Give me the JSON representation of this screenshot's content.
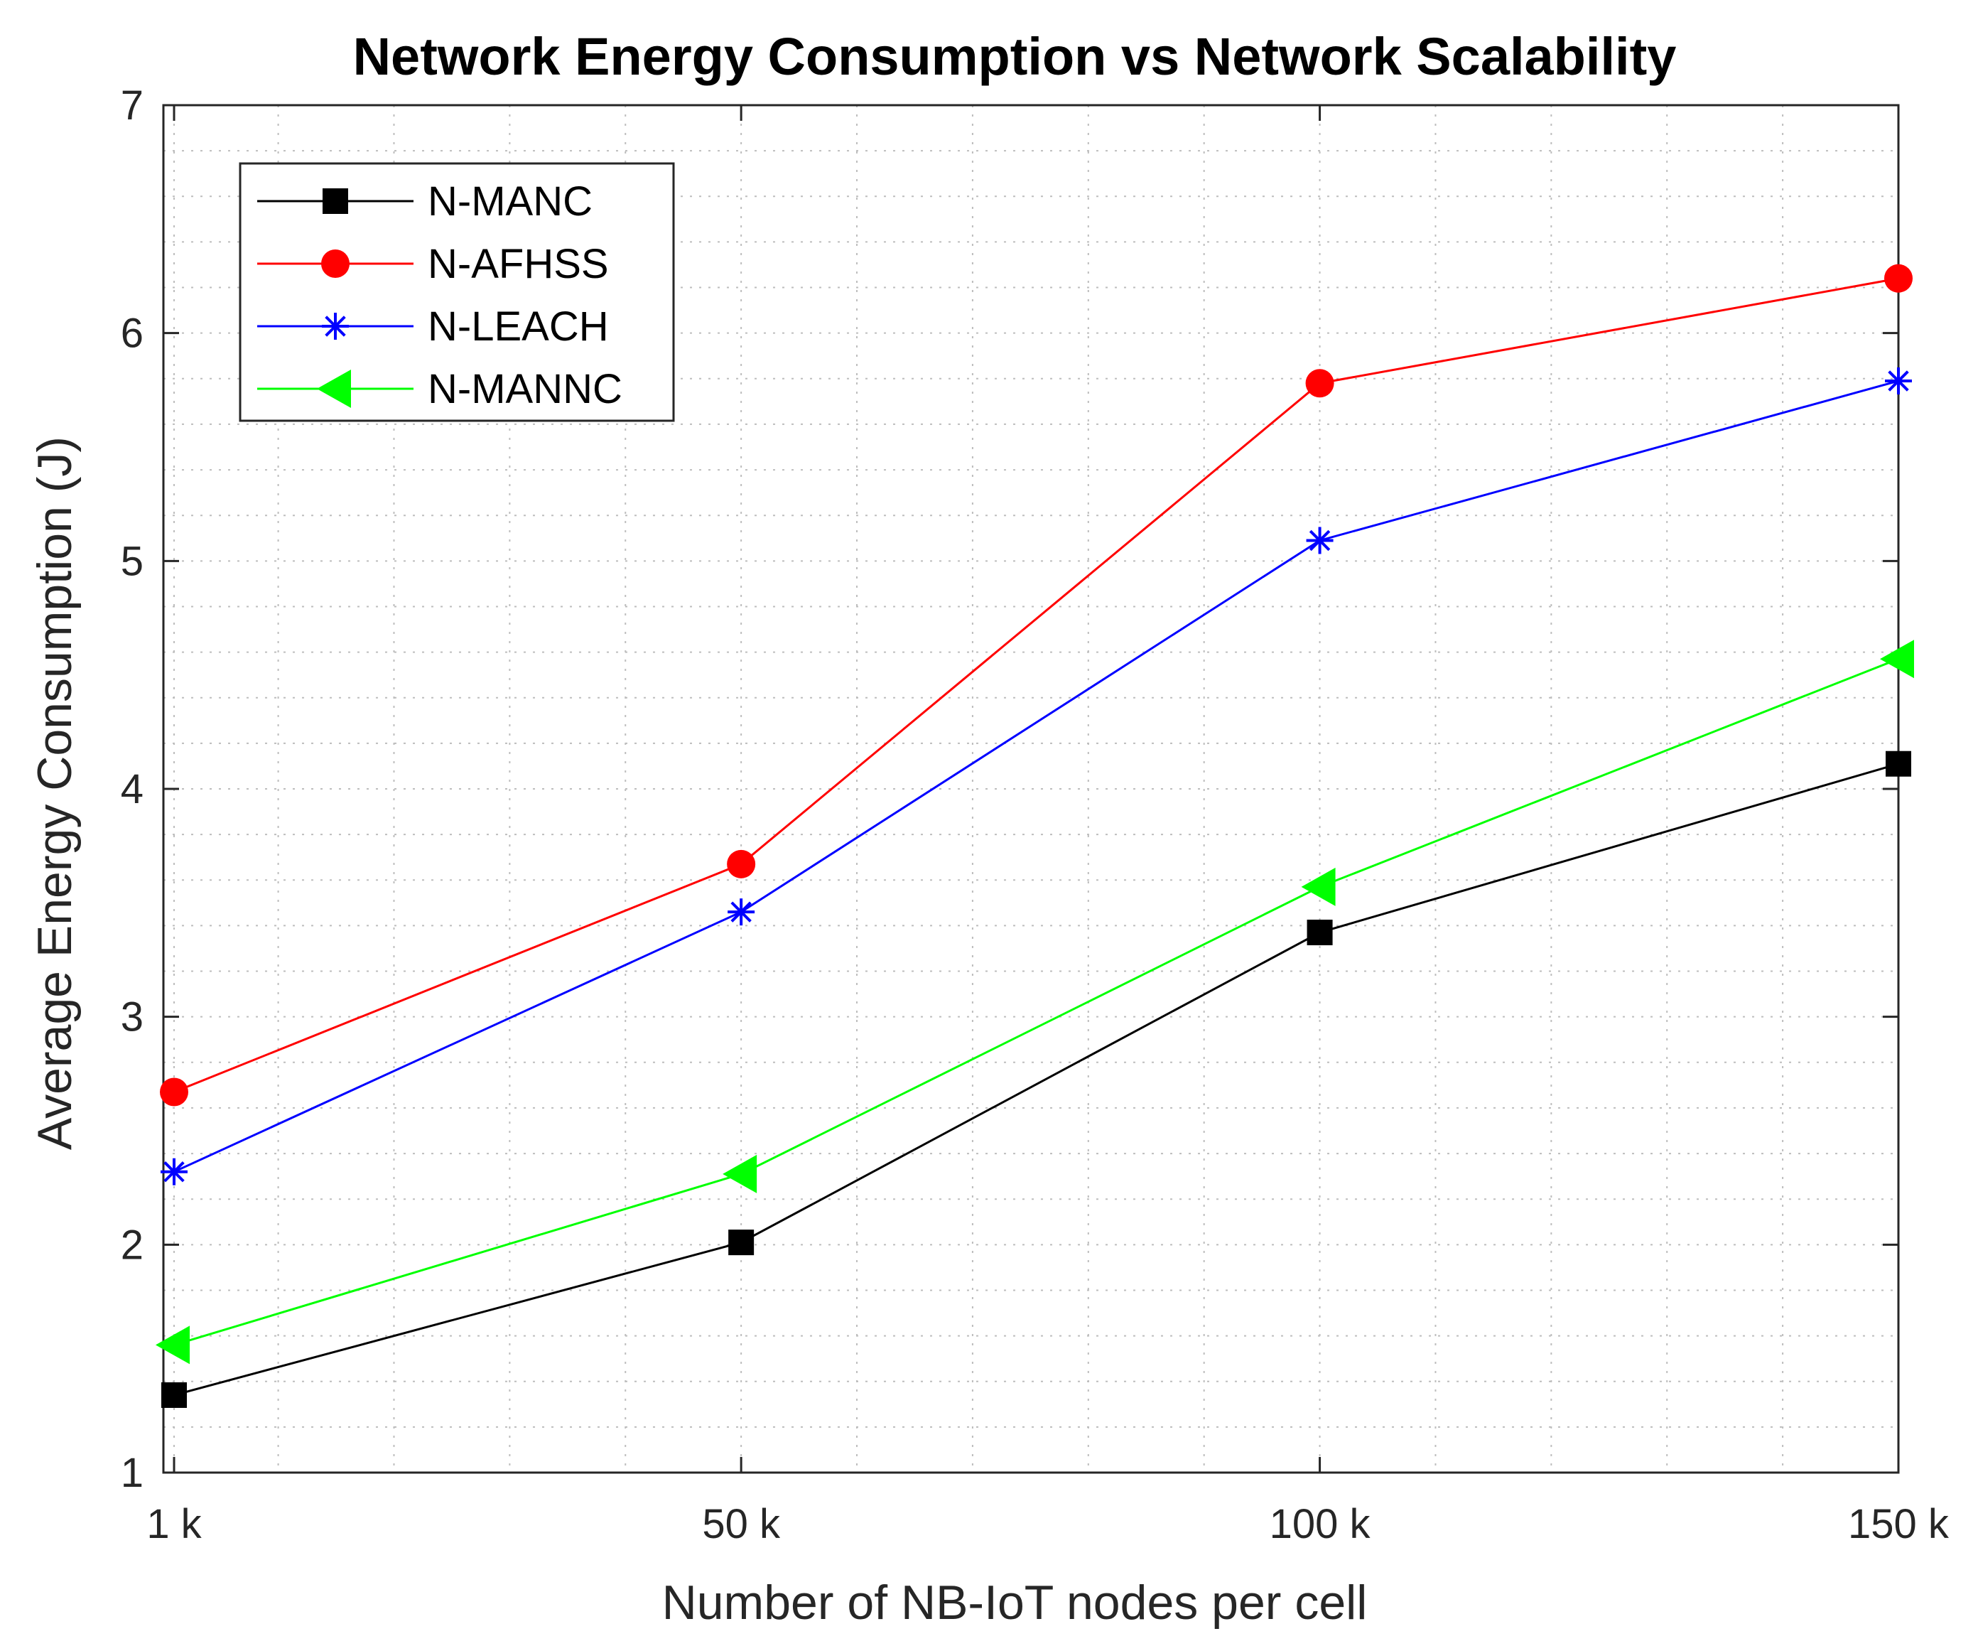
{
  "chart_data": {
    "type": "line",
    "title": "Network Energy Consumption vs Network Scalability",
    "xlabel": "Number of NB-IoT nodes per cell",
    "ylabel": "Average Energy Consumption (J)",
    "x": [
      1,
      50,
      100,
      150
    ],
    "x_tick_values": [
      1,
      50,
      100,
      150
    ],
    "x_tick_labels": [
      "1 k",
      "50 k",
      "100 k",
      "150 k"
    ],
    "xlim": [
      0,
      150
    ],
    "ylim": [
      1,
      7
    ],
    "y_tick_values": [
      1,
      2,
      3,
      4,
      5,
      6,
      7
    ],
    "y_tick_labels": [
      "1",
      "2",
      "3",
      "4",
      "5",
      "6",
      "7"
    ],
    "grid": true,
    "minor_grid": true,
    "legend_position": "top-left",
    "series": [
      {
        "name": "N-MANC",
        "color": "#000000",
        "marker": "square",
        "values": [
          1.34,
          2.01,
          3.37,
          4.11
        ]
      },
      {
        "name": "N-AFHSS",
        "color": "#ff0000",
        "marker": "circle",
        "values": [
          2.67,
          3.67,
          5.78,
          6.24
        ]
      },
      {
        "name": "N-LEACH",
        "color": "#0000ff",
        "marker": "asterisk",
        "values": [
          2.32,
          3.46,
          5.09,
          5.79
        ]
      },
      {
        "name": "N-MANNC",
        "color": "#00ff00",
        "marker": "triangle-left",
        "values": [
          1.56,
          2.31,
          3.57,
          4.57
        ]
      }
    ]
  }
}
